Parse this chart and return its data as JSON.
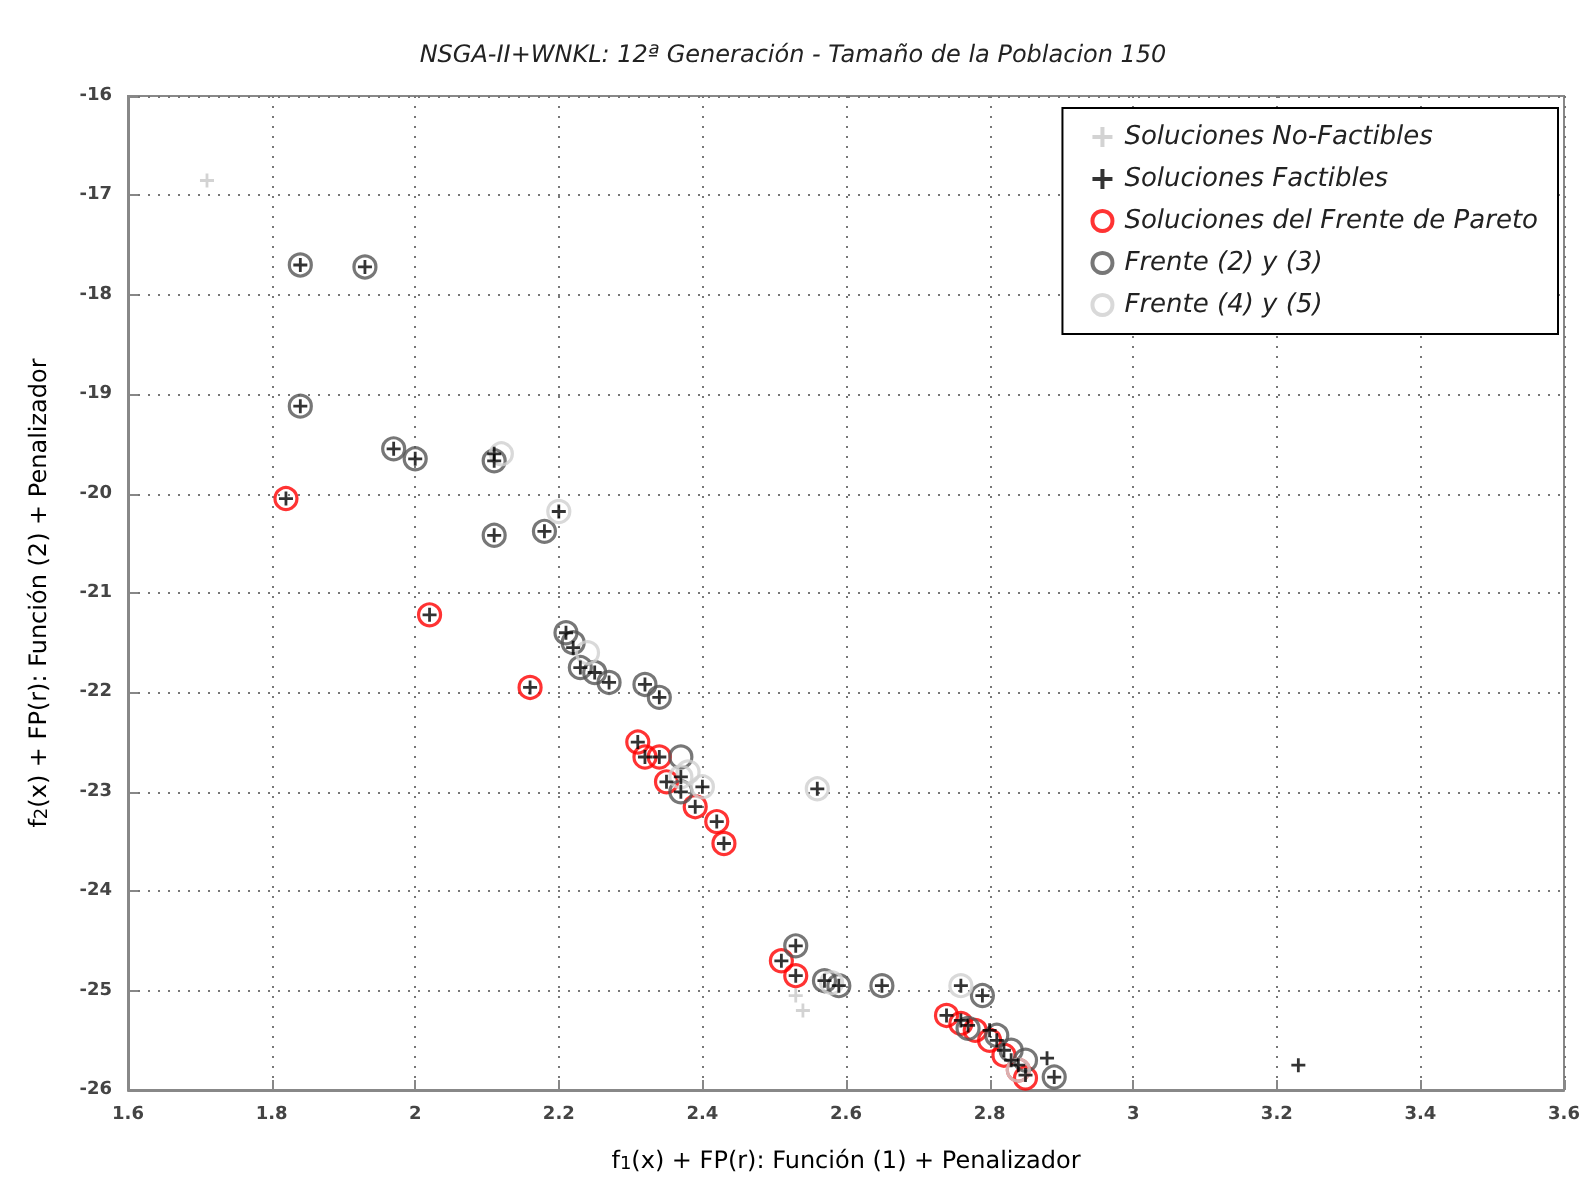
{
  "chart_data": {
    "type": "scatter",
    "title": "NSGA-II+WNKL: 12ª Generación - Tamaño de la Poblacion 150",
    "xlabel": "f$_{1}$(x) + FP(r): Función (1) + Penalizador",
    "ylabel": "f$_{2}$(x) + FP(r): Función (2) + Penalizador",
    "xlim": [
      1.6,
      3.6
    ],
    "xticks": [
      1.6,
      1.8,
      {
        "value": 2,
        "label": "2"
      },
      2.2,
      2.4,
      2.6,
      2.8,
      {
        "value": 3,
        "label": "3"
      },
      3.2,
      3.4,
      3.6
    ],
    "ylim": [
      -26,
      -16
    ],
    "yticks": [
      -26,
      -25,
      -24,
      -23,
      -22,
      -21,
      -20,
      -19,
      -18,
      -17,
      -16
    ],
    "grid": true,
    "legend": "top right",
    "series": [
      {
        "name": "Soluciones No-Factibles",
        "color": "#c8c8c8",
        "marker": "cross",
        "x": [
          1.71,
          2.53,
          2.54
        ],
        "values": [
          -16.85,
          -25.05,
          -25.2
        ]
      },
      {
        "name": "Soluciones Factibles",
        "color": "#000000",
        "marker": "cross",
        "x": [
          1.84,
          1.93,
          1.84,
          1.97,
          2.0,
          2.11,
          2.11,
          2.11,
          2.18,
          2.2,
          1.82,
          2.02,
          2.16,
          2.21,
          2.22,
          2.23,
          2.25,
          2.27,
          2.32,
          2.34,
          2.31,
          2.32,
          2.34,
          2.35,
          2.37,
          2.37,
          2.4,
          2.39,
          2.42,
          2.43,
          2.56,
          2.51,
          2.53,
          2.53,
          2.57,
          2.59,
          2.65,
          2.74,
          2.76,
          2.77,
          2.79,
          2.8,
          2.81,
          2.82,
          2.83,
          2.84,
          2.85,
          2.88,
          2.89,
          3.23,
          2.76
        ],
        "values": [
          -17.7,
          -17.72,
          -19.12,
          -19.55,
          -19.65,
          -19.6,
          -19.67,
          -20.42,
          -20.38,
          -20.18,
          -20.05,
          -21.22,
          -21.95,
          -21.4,
          -21.55,
          -21.75,
          -21.8,
          -21.9,
          -21.92,
          -22.05,
          -22.5,
          -22.65,
          -22.65,
          -22.9,
          -22.85,
          -23.0,
          -22.95,
          -23.15,
          -23.3,
          -23.52,
          -22.97,
          -24.7,
          -24.55,
          -24.85,
          -24.9,
          -24.95,
          -24.95,
          -25.25,
          -25.3,
          -25.35,
          -25.05,
          -25.4,
          -25.5,
          -25.6,
          -25.7,
          -25.75,
          -25.85,
          -25.68,
          -25.87,
          -25.75,
          -24.95
        ]
      },
      {
        "name": "Soluciones del Frente de Pareto",
        "color": "#ff0000",
        "marker": "circle",
        "x": [
          1.82,
          2.02,
          2.16,
          2.31,
          2.32,
          2.34,
          2.35,
          2.39,
          2.42,
          2.43,
          2.51,
          2.53,
          2.74,
          2.76,
          2.78,
          2.8,
          2.82,
          2.84,
          2.85
        ],
        "values": [
          -20.05,
          -21.22,
          -21.95,
          -22.5,
          -22.65,
          -22.65,
          -22.9,
          -23.15,
          -23.3,
          -23.52,
          -24.7,
          -24.85,
          -25.25,
          -25.33,
          -25.4,
          -25.5,
          -25.65,
          -25.8,
          -25.88
        ]
      },
      {
        "name": "Frente (2) y (3)",
        "color": "#555555",
        "marker": "circle",
        "x": [
          1.84,
          1.93,
          1.84,
          1.97,
          2.0,
          2.11,
          2.11,
          2.18,
          2.21,
          2.22,
          2.23,
          2.25,
          2.27,
          2.32,
          2.34,
          2.37,
          2.37,
          2.53,
          2.57,
          2.59,
          2.65,
          2.79,
          2.81,
          2.83,
          2.85,
          2.89,
          2.77
        ],
        "values": [
          -17.7,
          -17.72,
          -19.12,
          -19.55,
          -19.65,
          -19.67,
          -20.42,
          -20.38,
          -21.4,
          -21.5,
          -21.75,
          -21.8,
          -21.9,
          -21.92,
          -22.05,
          -22.65,
          -23.0,
          -24.55,
          -24.9,
          -24.95,
          -24.95,
          -25.05,
          -25.45,
          -25.6,
          -25.7,
          -25.87,
          -25.38
        ]
      },
      {
        "name": "Frente (4) y (5)",
        "color": "#d0d0d0",
        "marker": "circle",
        "x": [
          2.12,
          2.2,
          2.37,
          2.38,
          2.4,
          2.56,
          2.76,
          2.58,
          2.84,
          2.24
        ],
        "values": [
          -19.6,
          -20.18,
          -22.85,
          -22.8,
          -22.95,
          -22.97,
          -24.95,
          -24.92,
          -25.8,
          -21.6
        ]
      }
    ]
  }
}
